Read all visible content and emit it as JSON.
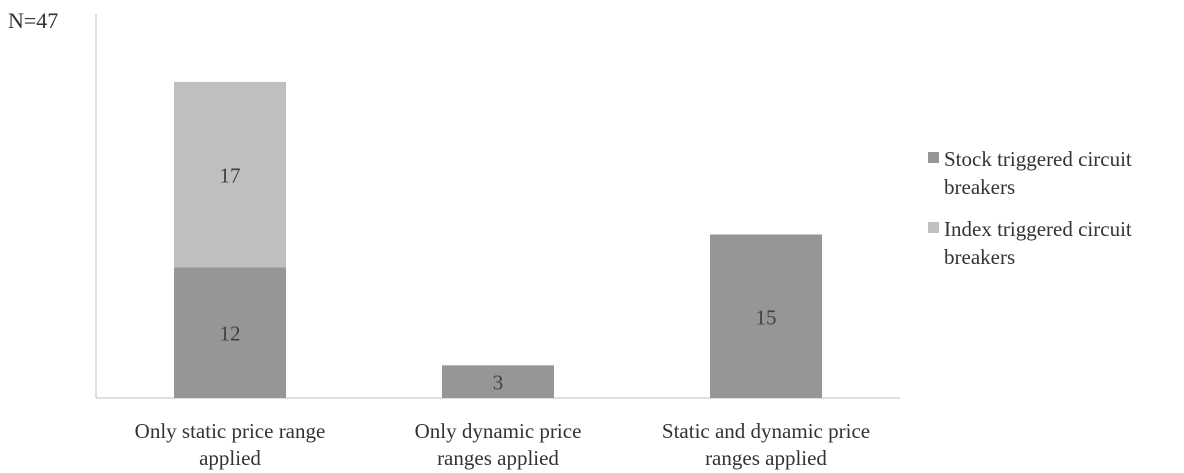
{
  "n_label": "N=47",
  "chart_data": {
    "type": "bar",
    "stacked": true,
    "categories": [
      [
        "Only static price range",
        "applied"
      ],
      [
        "Only dynamic price",
        "ranges applied"
      ],
      [
        "Static and dynamic price",
        "ranges applied"
      ]
    ],
    "series": [
      {
        "name": "Stock triggered circuit breakers",
        "color": "#969696",
        "values": [
          12,
          3,
          15
        ]
      },
      {
        "name": "Index triggered circuit breakers",
        "color": "#bfbfbf",
        "values": [
          17,
          0,
          0
        ]
      }
    ],
    "ylim": [
      0,
      30
    ],
    "grid": false,
    "legend_position": "right"
  }
}
